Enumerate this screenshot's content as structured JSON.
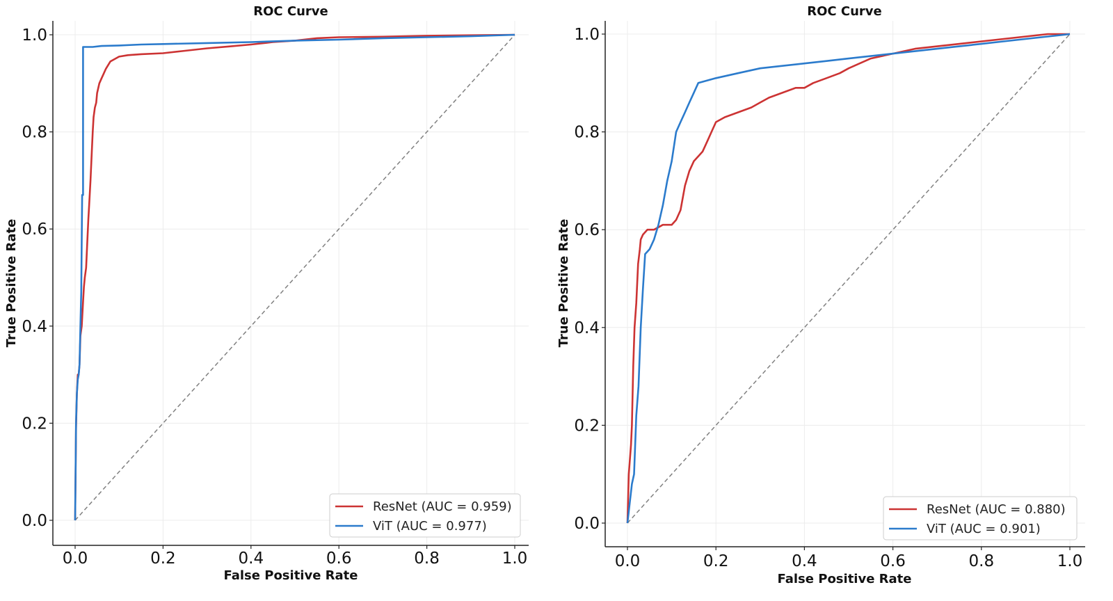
{
  "chart_data": [
    {
      "type": "line",
      "title": "ROC Curve",
      "xlabel": "False Positive Rate",
      "ylabel": "True Positive Rate",
      "xlim": [
        0,
        1
      ],
      "ylim": [
        0,
        1
      ],
      "xticks": [
        "0.0",
        "0.2",
        "0.4",
        "0.6",
        "0.8",
        "1.0"
      ],
      "yticks": [
        "0.0",
        "0.2",
        "0.4",
        "0.6",
        "0.8",
        "1.0"
      ],
      "grid": true,
      "legend_position": "bottom-right",
      "reference_line": {
        "x": [
          0,
          1
        ],
        "y": [
          0,
          1
        ],
        "style": "dashed",
        "color": "#808080"
      },
      "series": [
        {
          "name": "ResNet",
          "legend_label": "ResNet (AUC = 0.959)",
          "auc": 0.959,
          "color": "#cc3333",
          "x": [
            0,
            0.002,
            0.004,
            0.006,
            0.008,
            0.01,
            0.012,
            0.015,
            0.018,
            0.02,
            0.022,
            0.025,
            0.028,
            0.03,
            0.032,
            0.035,
            0.038,
            0.04,
            0.042,
            0.045,
            0.048,
            0.05,
            0.055,
            0.06,
            0.065,
            0.07,
            0.08,
            0.09,
            0.1,
            0.12,
            0.15,
            0.2,
            0.25,
            0.3,
            0.35,
            0.4,
            0.45,
            0.5,
            0.55,
            0.6,
            0.7,
            0.8,
            0.9,
            1.0
          ],
          "y": [
            0,
            0.19,
            0.26,
            0.3,
            0.3,
            0.32,
            0.38,
            0.4,
            0.45,
            0.48,
            0.5,
            0.52,
            0.58,
            0.62,
            0.65,
            0.7,
            0.76,
            0.8,
            0.83,
            0.85,
            0.86,
            0.88,
            0.9,
            0.91,
            0.92,
            0.93,
            0.945,
            0.95,
            0.955,
            0.958,
            0.96,
            0.962,
            0.967,
            0.972,
            0.976,
            0.98,
            0.985,
            0.988,
            0.993,
            0.995,
            0.996,
            0.998,
            0.999,
            1.0
          ]
        },
        {
          "name": "ViT",
          "legend_label": "ViT (AUC = 0.977)",
          "auc": 0.977,
          "color": "#2b7bcc",
          "x": [
            0,
            0.002,
            0.004,
            0.006,
            0.008,
            0.01,
            0.012,
            0.014,
            0.016,
            0.018,
            0.018,
            0.02,
            0.04,
            0.06,
            0.1,
            0.15,
            0.2,
            0.3,
            0.4,
            0.5,
            0.6,
            0.7,
            0.8,
            0.9,
            1.0
          ],
          "y": [
            0,
            0.2,
            0.26,
            0.29,
            0.3,
            0.32,
            0.4,
            0.47,
            0.67,
            0.67,
            0.975,
            0.975,
            0.975,
            0.977,
            0.978,
            0.98,
            0.981,
            0.983,
            0.985,
            0.988,
            0.99,
            0.993,
            0.995,
            0.997,
            1.0
          ]
        }
      ]
    },
    {
      "type": "line",
      "title": "ROC Curve",
      "xlabel": "False Positive Rate",
      "ylabel": "True Positive Rate",
      "xlim": [
        0,
        1
      ],
      "ylim": [
        0,
        1
      ],
      "xticks": [
        "0.0",
        "0.2",
        "0.4",
        "0.6",
        "0.8",
        "1.0"
      ],
      "yticks": [
        "0.0",
        "0.2",
        "0.4",
        "0.6",
        "0.8",
        "1.0"
      ],
      "grid": true,
      "legend_position": "bottom-right",
      "reference_line": {
        "x": [
          0,
          1
        ],
        "y": [
          0,
          1
        ],
        "style": "dashed",
        "color": "#808080"
      },
      "series": [
        {
          "name": "ResNet",
          "legend_label": "ResNet (AUC = 0.880)",
          "auc": 0.88,
          "color": "#cc3333",
          "x": [
            0,
            0.003,
            0.008,
            0.01,
            0.013,
            0.016,
            0.02,
            0.024,
            0.028,
            0.03,
            0.035,
            0.045,
            0.06,
            0.08,
            0.1,
            0.11,
            0.12,
            0.13,
            0.14,
            0.15,
            0.16,
            0.17,
            0.18,
            0.19,
            0.2,
            0.22,
            0.25,
            0.28,
            0.3,
            0.32,
            0.35,
            0.38,
            0.4,
            0.42,
            0.45,
            0.48,
            0.5,
            0.55,
            0.6,
            0.65,
            0.7,
            0.75,
            0.8,
            0.85,
            0.9,
            0.95,
            1.0
          ],
          "y": [
            0,
            0.1,
            0.16,
            0.2,
            0.32,
            0.4,
            0.45,
            0.53,
            0.56,
            0.58,
            0.59,
            0.6,
            0.6,
            0.61,
            0.61,
            0.62,
            0.64,
            0.69,
            0.72,
            0.74,
            0.75,
            0.76,
            0.78,
            0.8,
            0.82,
            0.83,
            0.84,
            0.85,
            0.86,
            0.87,
            0.88,
            0.89,
            0.89,
            0.9,
            0.91,
            0.92,
            0.93,
            0.95,
            0.96,
            0.97,
            0.975,
            0.98,
            0.985,
            0.99,
            0.995,
            1.0,
            1.0
          ]
        },
        {
          "name": "ViT",
          "legend_label": "ViT (AUC = 0.901)",
          "auc": 0.901,
          "color": "#2b7bcc",
          "x": [
            0,
            0.005,
            0.01,
            0.015,
            0.02,
            0.025,
            0.03,
            0.035,
            0.04,
            0.05,
            0.06,
            0.07,
            0.08,
            0.09,
            0.1,
            0.11,
            0.12,
            0.13,
            0.14,
            0.15,
            0.16,
            0.18,
            0.2,
            0.25,
            0.3,
            0.35,
            0.4,
            0.45,
            0.5,
            0.55,
            0.6,
            0.65,
            0.7,
            0.75,
            0.8,
            0.85,
            0.9,
            0.95,
            1.0
          ],
          "y": [
            0,
            0.04,
            0.08,
            0.1,
            0.22,
            0.28,
            0.4,
            0.48,
            0.55,
            0.56,
            0.58,
            0.61,
            0.65,
            0.7,
            0.74,
            0.8,
            0.82,
            0.84,
            0.86,
            0.88,
            0.9,
            0.905,
            0.91,
            0.92,
            0.93,
            0.935,
            0.94,
            0.945,
            0.95,
            0.955,
            0.96,
            0.965,
            0.97,
            0.975,
            0.98,
            0.985,
            0.99,
            0.995,
            1.0
          ]
        }
      ]
    }
  ]
}
